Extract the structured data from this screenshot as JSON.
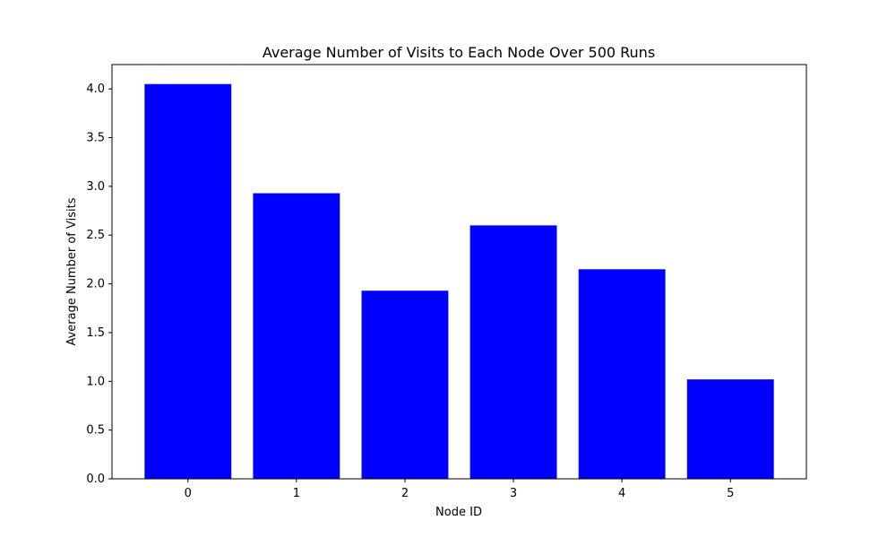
{
  "chart_data": {
    "type": "bar",
    "title": "Average Number of Visits to Each Node Over 500 Runs",
    "xlabel": "Node ID",
    "ylabel": "Average Number of Visits",
    "categories": [
      "0",
      "1",
      "2",
      "3",
      "4",
      "5"
    ],
    "values": [
      4.05,
      2.93,
      1.93,
      2.6,
      2.15,
      1.02
    ],
    "ylim": [
      0,
      4.25
    ],
    "yticks": [
      "0.0",
      "0.5",
      "1.0",
      "1.5",
      "2.0",
      "2.5",
      "3.0",
      "3.5",
      "4.0"
    ],
    "bar_color": "#0000ff",
    "grid": false,
    "legend": "none"
  }
}
